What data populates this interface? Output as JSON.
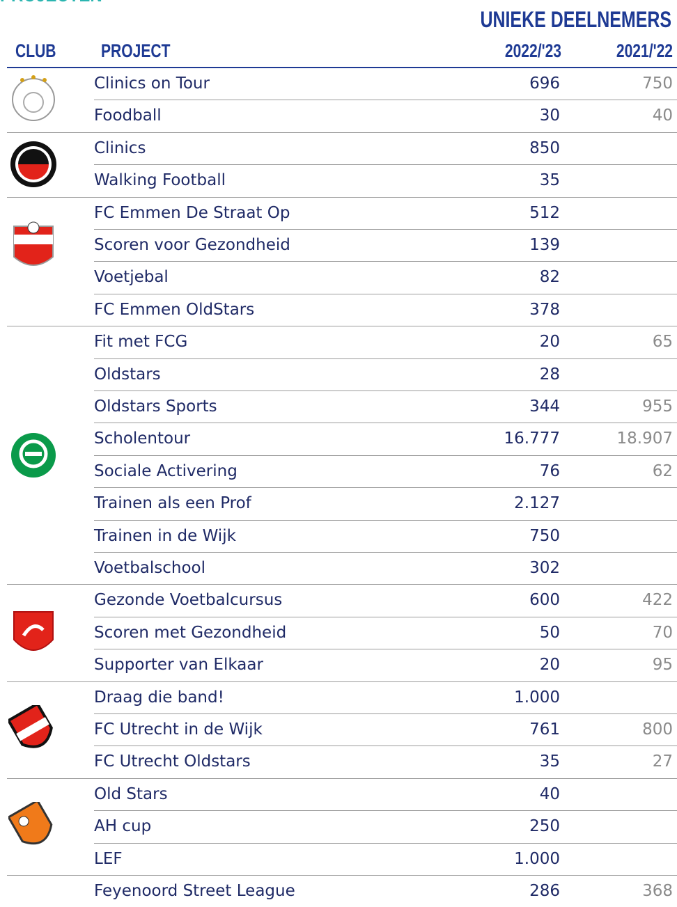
{
  "heading": "PROJECTEN",
  "header": {
    "group": "UNIEKE DEELNEMERS",
    "club": "CLUB",
    "project": "PROJECT",
    "col1": "2022/'23",
    "col2": "2021/'22"
  },
  "clubs": [
    {
      "rows": [
        [
          "Clinics on Tour",
          "696",
          "750"
        ],
        [
          "Foodball",
          "30",
          "40"
        ]
      ]
    },
    {
      "rows": [
        [
          "Clinics",
          "850",
          null
        ],
        [
          "Walking Football",
          "35",
          null
        ]
      ]
    },
    {
      "rows": [
        [
          "FC Emmen De Straat Op",
          "512",
          null
        ],
        [
          "Scoren voor Gezondheid",
          "139",
          null
        ],
        [
          "Voetjebal",
          "82",
          null
        ],
        [
          "FC Emmen OldStars",
          "378",
          null
        ]
      ]
    },
    {
      "rows": [
        [
          "Fit met FCG",
          "20",
          "65"
        ],
        [
          "Oldstars",
          "28",
          null
        ],
        [
          "Oldstars Sports",
          "344",
          "955"
        ],
        [
          "Scholentour",
          "16.777",
          "18.907"
        ],
        [
          "Sociale Activering",
          "76",
          "62"
        ],
        [
          "Trainen als een Prof",
          "2.127",
          null
        ],
        [
          "Trainen in de Wijk",
          "750",
          null
        ],
        [
          "Voetbalschool",
          "302",
          null
        ]
      ]
    },
    {
      "rows": [
        [
          "Gezonde Voetbalcursus",
          "600",
          "422"
        ],
        [
          "Scoren met Gezondheid",
          "50",
          "70"
        ],
        [
          "Supporter van Elkaar",
          "20",
          "95"
        ]
      ]
    },
    {
      "rows": [
        [
          "Draag die band!",
          "1.000",
          null
        ],
        [
          "FC Utrecht in de Wijk",
          "761",
          "800"
        ],
        [
          "FC Utrecht Oldstars",
          "35",
          "27"
        ]
      ]
    },
    {
      "rows": [
        [
          "Old Stars",
          "40",
          null
        ],
        [
          "AH cup",
          "250",
          null
        ],
        [
          "LEF",
          "1.000",
          null
        ]
      ]
    },
    {
      "rows": [
        [
          "Feyenoord Street League",
          "286",
          "368"
        ]
      ]
    }
  ]
}
